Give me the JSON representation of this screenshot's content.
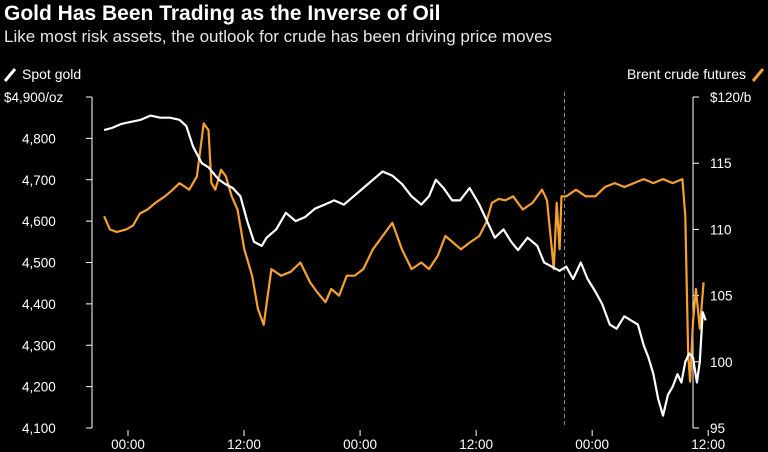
{
  "title": "Gold Has Been Trading as the Inverse of Oil",
  "subtitle": "Like most risk assets, the outlook for crude has been driving price moves",
  "colors": {
    "gold": "#ffffff",
    "brent": "#f5a031",
    "background": "#000000",
    "axis": "#ffffff",
    "divider": "#8a8a8a"
  },
  "chart_data": {
    "type": "line",
    "x_tick_labels": [
      "00:00",
      "12:00",
      "00:00",
      "12:00",
      "00:00",
      "12:00"
    ],
    "x_range_hours": [
      -3,
      62
    ],
    "x_ticks_hours": [
      0,
      12,
      24,
      36,
      48,
      60
    ],
    "divider_hour": 47,
    "left_axis": {
      "series": "Spot gold",
      "ylim": [
        4100,
        4900
      ],
      "ticks": [
        4100,
        4200,
        4300,
        4400,
        4500,
        4600,
        4700,
        4800,
        4900
      ],
      "tick_labels": [
        "4,100",
        "4,200",
        "4,300",
        "4,400",
        "4,500",
        "4,600",
        "4,700",
        "4,800",
        "$4,900/oz"
      ]
    },
    "right_axis": {
      "series": "Brent crude futures",
      "ylim": [
        95,
        120
      ],
      "ticks": [
        95,
        100,
        105,
        110,
        115,
        120
      ],
      "tick_labels": [
        "95",
        "100",
        "105",
        "110",
        "115",
        "$120/b"
      ]
    },
    "series": [
      {
        "name": "Spot gold",
        "axis": "left",
        "x": [
          -0.3,
          0.5,
          1.5,
          2.5,
          3.5,
          4.5,
          5.5,
          6.5,
          7.5,
          8.2,
          8.9,
          9.8,
          10.5,
          11.2,
          11.6,
          12.2,
          13.0,
          13.8,
          14.5,
          15.2,
          16.0,
          16.5,
          17.5,
          18.5,
          19.5,
          20.5,
          21.5,
          22.5,
          23.5,
          24.5,
          25.5,
          26.5,
          27.5,
          28.5,
          29.5,
          30.5,
          31.5,
          32.5,
          33.3,
          34.0,
          34.8,
          35.7,
          36.5,
          37.5,
          38.5,
          39.3,
          40.1,
          41.0,
          41.8,
          42.5,
          43.5,
          44.5,
          45.2,
          46.0,
          46.8,
          47.5,
          48.2,
          49.0,
          49.7,
          50.5,
          51.2,
          52.0,
          52.7,
          53.5,
          54.2,
          54.9,
          55.5,
          56.0,
          56.5,
          57.0,
          57.5,
          58.0,
          58.5,
          59.0,
          59.4,
          59.8,
          60.2,
          60.6,
          61.0,
          61.3,
          61.6,
          61.9
        ],
        "values": [
          4820,
          4825,
          4835,
          4840,
          4845,
          4855,
          4850,
          4850,
          4845,
          4830,
          4780,
          4740,
          4730,
          4710,
          4700,
          4690,
          4680,
          4660,
          4600,
          4550,
          4540,
          4560,
          4580,
          4620,
          4600,
          4610,
          4630,
          4640,
          4650,
          4640,
          4660,
          4680,
          4700,
          4720,
          4710,
          4690,
          4660,
          4640,
          4660,
          4700,
          4680,
          4650,
          4650,
          4680,
          4640,
          4600,
          4560,
          4580,
          4550,
          4530,
          4560,
          4540,
          4500,
          4490,
          4480,
          4490,
          4460,
          4500,
          4460,
          4430,
          4400,
          4350,
          4340,
          4370,
          4360,
          4350,
          4300,
          4270,
          4230,
          4170,
          4130,
          4180,
          4200,
          4230,
          4210,
          4260,
          4280,
          4270,
          4210,
          4260,
          4380,
          4360
        ]
      },
      {
        "name": "Brent crude futures",
        "axis": "right",
        "x": [
          -0.3,
          0.3,
          1.0,
          2.0,
          2.7,
          3.4,
          4.2,
          5.0,
          6.0,
          6.8,
          7.5,
          8.5,
          9.3,
          10.0,
          10.5,
          10.8,
          11.2,
          11.8,
          12.3,
          12.9,
          13.5,
          14.2,
          15.0,
          15.6,
          16.2,
          17.0,
          18.0,
          19.0,
          20.0,
          21.0,
          21.8,
          22.6,
          23.2,
          24.0,
          24.8,
          25.6,
          26.5,
          27.5,
          28.5,
          29.5,
          30.5,
          31.5,
          32.5,
          33.3,
          34.2,
          35.0,
          35.8,
          36.6,
          37.5,
          38.5,
          39.2,
          39.8,
          40.5,
          41.2,
          42.0,
          43.0,
          44.0,
          45.0,
          45.5,
          46.2,
          46.5,
          46.8,
          47.0,
          47.5,
          48.5,
          49.5,
          50.5,
          51.5,
          52.5,
          53.5,
          54.5,
          55.5,
          56.5,
          57.5,
          58.5,
          59.5,
          59.8,
          60.1,
          60.3,
          60.6,
          60.9,
          61.3,
          61.7
        ],
        "values": [
          111.0,
          110.0,
          109.8,
          110.0,
          110.3,
          111.2,
          111.5,
          112.0,
          112.5,
          113.0,
          113.5,
          113.0,
          114.0,
          118.0,
          117.5,
          113.5,
          113.0,
          114.5,
          114.0,
          112.5,
          111.5,
          108.5,
          106.5,
          104.0,
          102.8,
          107.0,
          106.5,
          106.8,
          107.5,
          106.0,
          105.2,
          104.5,
          105.5,
          105.0,
          106.5,
          106.5,
          107.0,
          108.5,
          109.5,
          110.5,
          108.5,
          107.0,
          107.5,
          107.0,
          108.0,
          109.5,
          109.0,
          108.5,
          109.0,
          109.5,
          110.5,
          112.0,
          112.3,
          112.2,
          112.5,
          111.5,
          112.0,
          113.0,
          112.2,
          107.0,
          112.0,
          108.5,
          112.5,
          112.5,
          113.0,
          112.5,
          112.5,
          113.2,
          113.5,
          113.2,
          113.5,
          113.8,
          113.5,
          113.8,
          113.5,
          113.8,
          111.0,
          100.5,
          98.5,
          103.0,
          105.5,
          102.5,
          106.0
        ]
      }
    ]
  }
}
